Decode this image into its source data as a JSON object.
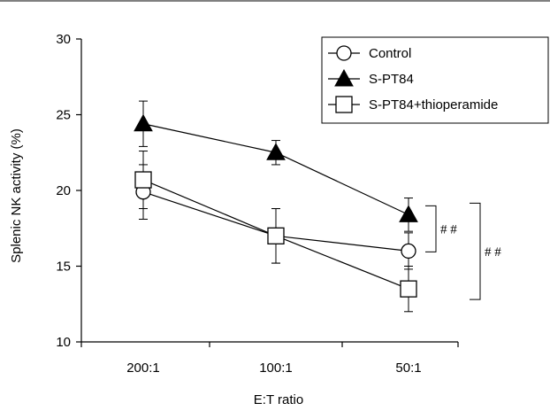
{
  "chart_data": {
    "type": "line",
    "title": "",
    "xlabel": "E:T ratio",
    "ylabel": "Splenic NK activity (%)",
    "categories": [
      "200:1",
      "100:1",
      "50:1"
    ],
    "ylim": [
      10,
      30
    ],
    "yticks": [
      10,
      15,
      20,
      25,
      30
    ],
    "grid": false,
    "legend_position": "top-right",
    "series": [
      {
        "name": "Control",
        "marker": "circle-open",
        "values": [
          19.9,
          17.0,
          16.0
        ],
        "errors": [
          1.8,
          1.8,
          1.2
        ]
      },
      {
        "name": "S-PT84",
        "marker": "triangle-filled",
        "values": [
          24.4,
          22.5,
          18.4
        ],
        "errors": [
          1.5,
          0.8,
          1.1
        ]
      },
      {
        "name": "S-PT84+thioperamide",
        "marker": "square-open",
        "values": [
          20.7,
          17.0,
          13.5
        ],
        "errors": [
          1.9,
          1.8,
          1.5
        ]
      }
    ],
    "annotations": [
      {
        "text": "# #",
        "between": [
          "S-PT84",
          "Control"
        ],
        "at": "50:1"
      },
      {
        "text": "# #",
        "between": [
          "S-PT84",
          "S-PT84+thioperamide"
        ],
        "at": "50:1"
      }
    ]
  }
}
